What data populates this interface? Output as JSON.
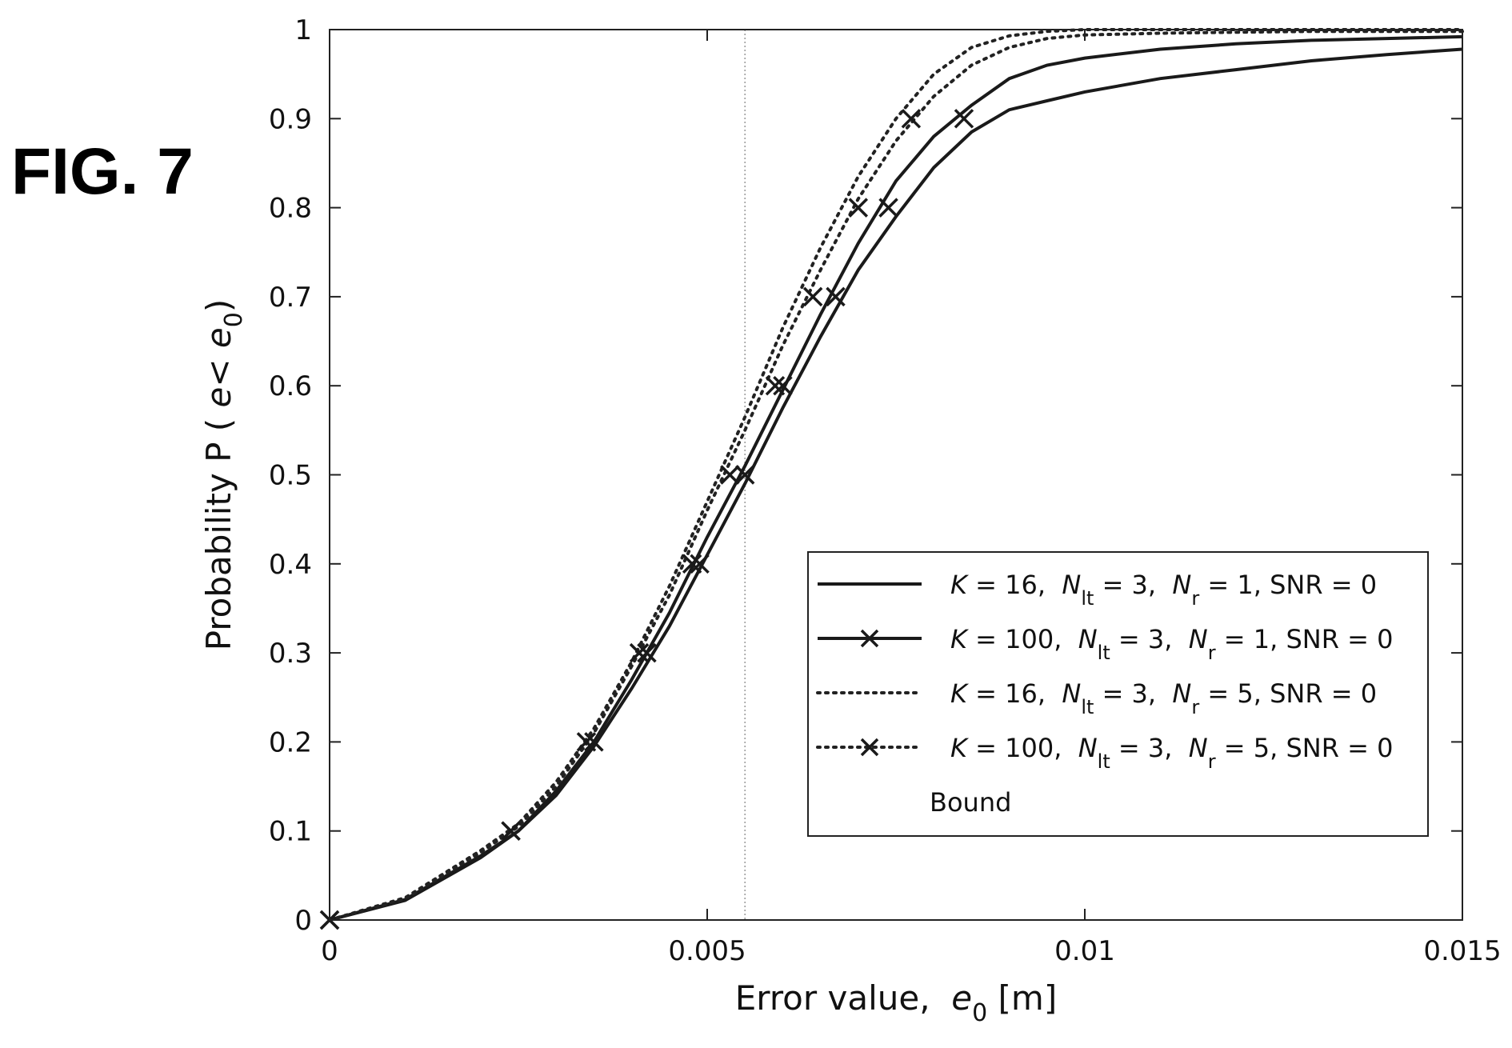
{
  "figure_label": "FIG. 7",
  "chart_data": {
    "type": "line",
    "xlabel": "Error value,  e0 [m]",
    "ylabel": "Probability P ( e< e0)",
    "xlim": [
      0,
      0.015
    ],
    "ylim": [
      0,
      1
    ],
    "x_ticks": [
      0,
      0.005,
      0.01,
      0.015
    ],
    "x_tick_labels": [
      "0",
      "0.005",
      "0.01",
      "0.015"
    ],
    "y_ticks": [
      0,
      0.1,
      0.2,
      0.3,
      0.4,
      0.5,
      0.6,
      0.7,
      0.8,
      0.9,
      1
    ],
    "y_tick_labels": [
      "0",
      "0.1",
      "0.2",
      "0.3",
      "0.4",
      "0.5",
      "0.6",
      "0.7",
      "0.8",
      "0.9",
      "1"
    ],
    "grid": false,
    "legend_position": "lower-right",
    "bound_x": 0.0055,
    "series": [
      {
        "name": "K = 16,  Nlt = 3,  Nr = 1, SNR = 0",
        "style": "solid",
        "marker": "none",
        "points": [
          [
            0,
            0
          ],
          [
            0.001,
            0.022
          ],
          [
            0.002,
            0.07
          ],
          [
            0.0025,
            0.1
          ],
          [
            0.003,
            0.14
          ],
          [
            0.0035,
            0.195
          ],
          [
            0.004,
            0.26
          ],
          [
            0.0045,
            0.33
          ],
          [
            0.005,
            0.41
          ],
          [
            0.0055,
            0.49
          ],
          [
            0.006,
            0.575
          ],
          [
            0.0065,
            0.655
          ],
          [
            0.007,
            0.73
          ],
          [
            0.0075,
            0.79
          ],
          [
            0.008,
            0.845
          ],
          [
            0.0085,
            0.885
          ],
          [
            0.009,
            0.91
          ],
          [
            0.0095,
            0.92
          ],
          [
            0.01,
            0.93
          ],
          [
            0.011,
            0.945
          ],
          [
            0.012,
            0.955
          ],
          [
            0.013,
            0.965
          ],
          [
            0.014,
            0.972
          ],
          [
            0.015,
            0.978
          ]
        ]
      },
      {
        "name": "K = 100,  Nlt = 3,  Nr = 1, SNR = 0",
        "style": "solid",
        "marker": "x",
        "points": [
          [
            0,
            0
          ],
          [
            0.001,
            0.023
          ],
          [
            0.002,
            0.072
          ],
          [
            0.0025,
            0.1
          ],
          [
            0.003,
            0.145
          ],
          [
            0.0035,
            0.2
          ],
          [
            0.004,
            0.27
          ],
          [
            0.0045,
            0.345
          ],
          [
            0.005,
            0.43
          ],
          [
            0.0055,
            0.51
          ],
          [
            0.006,
            0.595
          ],
          [
            0.0065,
            0.68
          ],
          [
            0.007,
            0.76
          ],
          [
            0.0075,
            0.83
          ],
          [
            0.008,
            0.88
          ],
          [
            0.0085,
            0.915
          ],
          [
            0.009,
            0.945
          ],
          [
            0.0095,
            0.96
          ],
          [
            0.01,
            0.968
          ],
          [
            0.011,
            0.978
          ],
          [
            0.012,
            0.984
          ],
          [
            0.013,
            0.988
          ],
          [
            0.014,
            0.99
          ],
          [
            0.015,
            0.992
          ]
        ],
        "markers": [
          [
            0,
            0
          ],
          [
            0.0024,
            0.1
          ],
          [
            0.0035,
            0.2
          ],
          [
            0.0042,
            0.3
          ],
          [
            0.0049,
            0.4
          ],
          [
            0.0055,
            0.5
          ],
          [
            0.006,
            0.6
          ],
          [
            0.0067,
            0.7
          ],
          [
            0.0074,
            0.8
          ],
          [
            0.0084,
            0.9
          ]
        ]
      },
      {
        "name": "K = 16,  Nlt = 3,  Nr = 5, SNR = 0",
        "style": "dotted",
        "marker": "none",
        "points": [
          [
            0,
            0
          ],
          [
            0.001,
            0.024
          ],
          [
            0.002,
            0.076
          ],
          [
            0.0025,
            0.105
          ],
          [
            0.003,
            0.15
          ],
          [
            0.0035,
            0.21
          ],
          [
            0.004,
            0.285
          ],
          [
            0.0045,
            0.365
          ],
          [
            0.005,
            0.46
          ],
          [
            0.0055,
            0.55
          ],
          [
            0.006,
            0.645
          ],
          [
            0.0065,
            0.73
          ],
          [
            0.007,
            0.81
          ],
          [
            0.0075,
            0.875
          ],
          [
            0.008,
            0.925
          ],
          [
            0.0085,
            0.96
          ],
          [
            0.009,
            0.98
          ],
          [
            0.0095,
            0.99
          ],
          [
            0.01,
            0.994
          ],
          [
            0.011,
            0.996
          ],
          [
            0.012,
            0.997
          ],
          [
            0.013,
            0.998
          ],
          [
            0.014,
            0.998
          ],
          [
            0.015,
            0.998
          ]
        ]
      },
      {
        "name": "K = 100,  Nlt = 3,  Nr = 5, SNR = 0",
        "style": "dotted",
        "marker": "x",
        "points": [
          [
            0,
            0
          ],
          [
            0.001,
            0.025
          ],
          [
            0.002,
            0.078
          ],
          [
            0.0025,
            0.108
          ],
          [
            0.003,
            0.155
          ],
          [
            0.0035,
            0.215
          ],
          [
            0.004,
            0.29
          ],
          [
            0.0045,
            0.375
          ],
          [
            0.005,
            0.47
          ],
          [
            0.0055,
            0.565
          ],
          [
            0.006,
            0.665
          ],
          [
            0.0065,
            0.755
          ],
          [
            0.007,
            0.835
          ],
          [
            0.0075,
            0.9
          ],
          [
            0.008,
            0.95
          ],
          [
            0.0085,
            0.98
          ],
          [
            0.009,
            0.993
          ],
          [
            0.0095,
            0.998
          ],
          [
            0.01,
            1.0
          ],
          [
            0.011,
            1.0
          ],
          [
            0.012,
            1.0
          ],
          [
            0.013,
            1.0
          ],
          [
            0.014,
            1.0
          ],
          [
            0.015,
            1.0
          ]
        ],
        "markers": [
          [
            0,
            0
          ],
          [
            0.0024,
            0.1
          ],
          [
            0.0034,
            0.2
          ],
          [
            0.0041,
            0.3
          ],
          [
            0.0048,
            0.4
          ],
          [
            0.0053,
            0.5
          ],
          [
            0.0059,
            0.6
          ],
          [
            0.0064,
            0.7
          ],
          [
            0.007,
            0.8
          ],
          [
            0.0077,
            0.9
          ]
        ]
      }
    ],
    "legend_entries": [
      {
        "style": "solid",
        "marker": "none",
        "parts": [
          [
            "K",
            "italic"
          ],
          [
            " = 16,  ",
            ""
          ],
          [
            "N",
            "italic"
          ],
          [
            "lt",
            "sub"
          ],
          [
            " = 3,  ",
            ""
          ],
          [
            "N",
            "italic"
          ],
          [
            "r",
            "sub"
          ],
          [
            " = 1, SNR = 0",
            ""
          ]
        ]
      },
      {
        "style": "solid",
        "marker": "x",
        "parts": [
          [
            "K",
            "italic"
          ],
          [
            " = 100,  ",
            ""
          ],
          [
            "N",
            "italic"
          ],
          [
            "lt",
            "sub"
          ],
          [
            " = 3,  ",
            ""
          ],
          [
            "N",
            "italic"
          ],
          [
            "r",
            "sub"
          ],
          [
            " = 1, SNR = 0",
            ""
          ]
        ]
      },
      {
        "style": "dotted",
        "marker": "none",
        "parts": [
          [
            "K",
            "italic"
          ],
          [
            " = 16,  ",
            ""
          ],
          [
            "N",
            "italic"
          ],
          [
            "lt",
            "sub"
          ],
          [
            " = 3,  ",
            ""
          ],
          [
            "N",
            "italic"
          ],
          [
            "r",
            "sub"
          ],
          [
            " = 5, SNR = 0",
            ""
          ]
        ]
      },
      {
        "style": "dotted",
        "marker": "x",
        "parts": [
          [
            "K",
            "italic"
          ],
          [
            " = 100,  ",
            ""
          ],
          [
            "N",
            "italic"
          ],
          [
            "lt",
            "sub"
          ],
          [
            " = 3,  ",
            ""
          ],
          [
            "N",
            "italic"
          ],
          [
            "r",
            "sub"
          ],
          [
            " = 5, SNR = 0",
            ""
          ]
        ]
      },
      {
        "style": "thin",
        "marker": "none",
        "parts": [
          [
            "Bound",
            ""
          ]
        ]
      }
    ]
  }
}
